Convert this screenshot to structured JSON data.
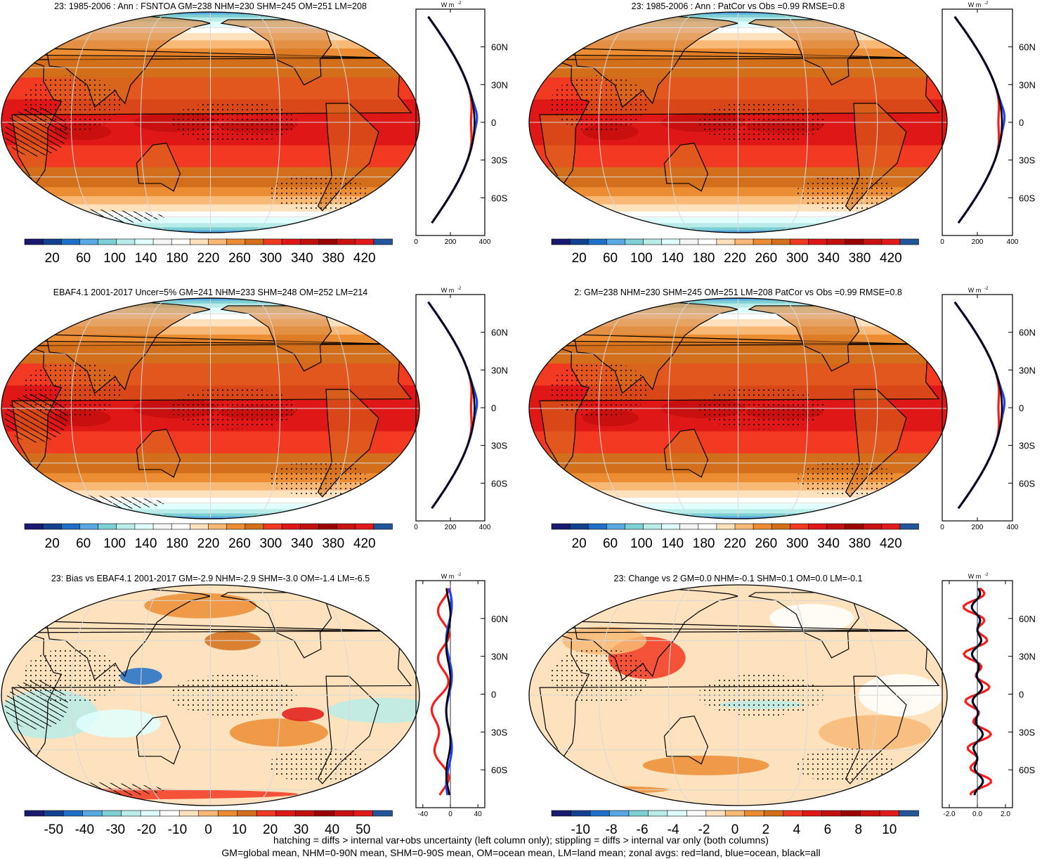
{
  "figure": {
    "footer_line1": "hatching = diffs > internal var+obs uncertainty (left column only); stippling = diffs > internal var only (both columns)",
    "footer_line2": "GM=global mean, NHM=0-90N mean, SHM=0-90S mean, OM=ocean mean, LM=land mean; zonal avgs: red=land, blue=ocean, black=all"
  },
  "colors": {
    "land": "#ff1a1a",
    "ocean": "#1f3fff",
    "all": "#000000",
    "abs_scale": [
      "#191970",
      "#12418f",
      "#1f6fc9",
      "#57a8e3",
      "#7ecfd4",
      "#b9ece8",
      "#e0ffff",
      "#f5f5f5",
      "#ffffff",
      "#fde2bd",
      "#f8b876",
      "#ec8d34",
      "#d36f1b",
      "#f23a22",
      "#e01717",
      "#c40f0f",
      "#9b0404",
      "#cc1111",
      "#e31a1a",
      "#225599"
    ],
    "diff_scale": [
      "#191970",
      "#12418f",
      "#1f6fc9",
      "#57a8e3",
      "#7ecfd4",
      "#b9ece8",
      "#e0ffff",
      "#ffffff",
      "#fde2bd",
      "#f8b876",
      "#ec8d34",
      "#d36f1b",
      "#f23a22",
      "#e01717",
      "#c40f0f",
      "#9b0404",
      "#cc1111",
      "#e31a1a",
      "#225599"
    ]
  },
  "chart_data": [
    {
      "type": "heatmap",
      "title": "23: 1985-2006 : Ann : FSNTOA GM=238 NHM=230 SHM=245 OM=251 LM=208",
      "field": "abs",
      "hatched": true,
      "colorbar_labels": [
        "20",
        "60",
        "100",
        "140",
        "180",
        "220",
        "260",
        "300",
        "340",
        "380",
        "420"
      ],
      "zonal": {
        "units": "W m",
        "units_exp": "-2",
        "xlim": [
          0,
          400
        ],
        "xticks": [
          "0",
          "200",
          "400"
        ],
        "lat_labels": [
          "60N",
          "30N",
          "0",
          "30S",
          "60S"
        ],
        "lat_values": [
          60,
          30,
          0,
          -30,
          -60
        ],
        "ylim": [
          -90,
          90
        ],
        "kind": "abs"
      }
    },
    {
      "type": "heatmap",
      "title": "23: 1985-2006 : Ann : PatCor vs Obs =0.99 RMSE=0.8",
      "field": "abs",
      "hatched": false,
      "colorbar_labels": [
        "20",
        "60",
        "100",
        "140",
        "180",
        "220",
        "260",
        "300",
        "340",
        "380",
        "420"
      ],
      "zonal": {
        "units": "W m",
        "units_exp": "-2",
        "xlim": [
          0,
          400
        ],
        "xticks": [
          "0",
          "200",
          "400"
        ],
        "lat_labels": [
          "60N",
          "30N",
          "0",
          "30S",
          "60S"
        ],
        "lat_values": [
          60,
          30,
          0,
          -30,
          -60
        ],
        "ylim": [
          -90,
          90
        ],
        "kind": "abs"
      }
    },
    {
      "type": "heatmap",
      "title": "EBAF4.1 2001-2017 Uncer=5% GM=241 NHM=233 SHM=248 OM=252 LM=214",
      "field": "abs",
      "hatched": true,
      "colorbar_labels": [
        "20",
        "60",
        "100",
        "140",
        "180",
        "220",
        "260",
        "300",
        "340",
        "380",
        "420"
      ],
      "zonal": {
        "units": "W m",
        "units_exp": "-2",
        "xlim": [
          0,
          400
        ],
        "xticks": [
          "0",
          "200",
          "400"
        ],
        "lat_labels": [
          "60N",
          "30N",
          "0",
          "30S",
          "60S"
        ],
        "lat_values": [
          60,
          30,
          0,
          -30,
          -60
        ],
        "ylim": [
          -90,
          90
        ],
        "kind": "abs"
      }
    },
    {
      "type": "heatmap",
      "title": "2: GM=238 NHM=230 SHM=245 OM=251 LM=208 PatCor vs Obs =0.99 RMSE=0.8",
      "field": "abs",
      "hatched": false,
      "colorbar_labels": [
        "20",
        "60",
        "100",
        "140",
        "180",
        "220",
        "260",
        "300",
        "340",
        "380",
        "420"
      ],
      "zonal": {
        "units": "W m",
        "units_exp": "-2",
        "xlim": [
          0,
          400
        ],
        "xticks": [
          "0",
          "200",
          "400"
        ],
        "lat_labels": [
          "60N",
          "30N",
          "0",
          "30S",
          "60S"
        ],
        "lat_values": [
          60,
          30,
          0,
          -30,
          -60
        ],
        "ylim": [
          -90,
          90
        ],
        "kind": "abs"
      }
    },
    {
      "type": "heatmap",
      "title": "23: Bias vs EBAF4.1 2001-2017 GM=-2.9 NHM=-2.9 SHM=-3.0 OM=-1.4 LM=-6.5",
      "field": "bias",
      "hatched": true,
      "colorbar_labels": [
        "-50",
        "-40",
        "-30",
        "-20",
        "-10",
        "0",
        "10",
        "20",
        "30",
        "40",
        "50"
      ],
      "zonal": {
        "units": "W m",
        "units_exp": "-2",
        "xlim": [
          -50,
          50
        ],
        "xticks": [
          "-40",
          "0",
          "40"
        ],
        "xtick_values": [
          -40,
          0,
          40
        ],
        "lat_labels": [
          "60N",
          "30N",
          "0",
          "30S",
          "60S"
        ],
        "lat_values": [
          60,
          30,
          0,
          -30,
          -60
        ],
        "ylim": [
          -90,
          90
        ],
        "kind": "bias"
      }
    },
    {
      "type": "heatmap",
      "title": "23: Change vs 2 GM=0.0 NHM=-0.1 SHM=0.1 OM=0.0 LM=-0.1",
      "field": "change",
      "hatched": false,
      "colorbar_labels": [
        "-10",
        "-8",
        "-6",
        "-4",
        "-2",
        "0",
        "2",
        "4",
        "6",
        "8",
        "10"
      ],
      "zonal": {
        "units": "W m",
        "units_exp": "-2",
        "xlim": [
          -2.5,
          2.5
        ],
        "xticks": [
          "-2.0",
          "0.0",
          "2.0"
        ],
        "xtick_values": [
          -2,
          0,
          2
        ],
        "lat_labels": [
          "60N",
          "30N",
          "0",
          "30S",
          "60S"
        ],
        "lat_values": [
          60,
          30,
          0,
          -30,
          -60
        ],
        "ylim": [
          -90,
          90
        ],
        "kind": "change"
      }
    }
  ]
}
